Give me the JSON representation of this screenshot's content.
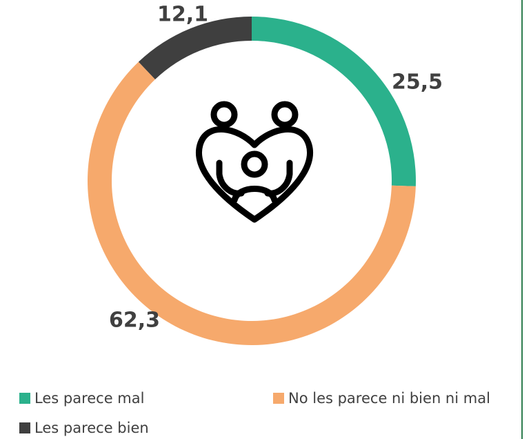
{
  "chart_data": {
    "type": "donut",
    "categories": [
      "Les parece mal",
      "No les parece ni bien ni mal",
      "Les parece bien"
    ],
    "values": [
      25.5,
      62.3,
      12.1
    ],
    "value_labels": [
      "25,5",
      "62,3",
      "12,1"
    ],
    "colors": [
      "#2bb18c",
      "#f6a96c",
      "#3f3f3f"
    ],
    "legend": "bottom"
  }
}
